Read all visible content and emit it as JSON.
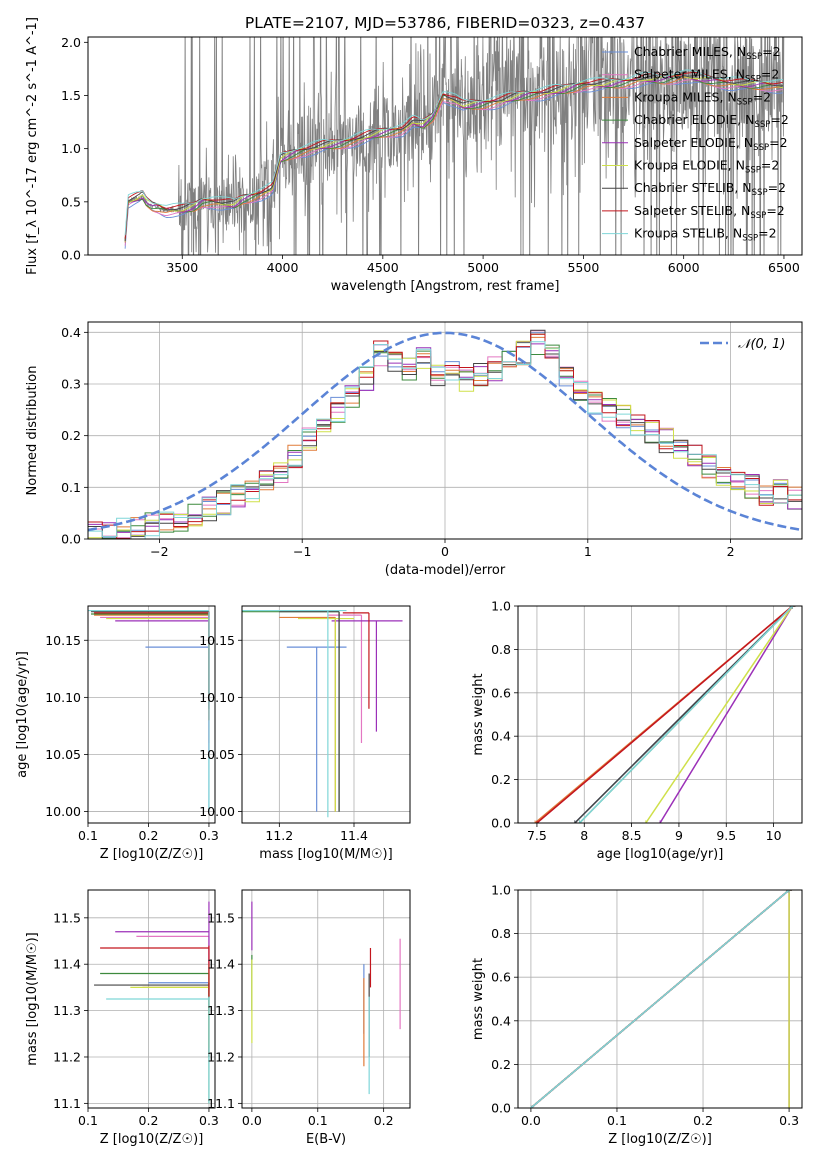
{
  "title": "PLATE=2107, MJD=53786, FIBERID=0323, z=0.437",
  "colors": {
    "Chabrier MILES": "#6a8fd8",
    "Salpeter MILES": "#e377c2",
    "Kroupa MILES": "#e07b39",
    "Chabrier ELODIE": "#3d8a3d",
    "Salpeter ELODIE": "#9b30b8",
    "Kroupa ELODIE": "#cfe04a",
    "Chabrier STELIB": "#444444",
    "Salpeter STELIB": "#c3161d",
    "Kroupa STELIB": "#7fd6d8"
  },
  "chart_data": [
    {
      "type": "line",
      "name": "spectrum",
      "xlabel": "wavelength [Angstrom, rest frame]",
      "ylabel": "Flux [f_λ 10^-17 erg cm^-2 s^-1 A^-1]",
      "xlim": [
        3030,
        6590
      ],
      "ylim": [
        0,
        2.05
      ],
      "xticks": [
        3500,
        4000,
        4500,
        5000,
        5500,
        6000,
        6500
      ],
      "yticks": [
        0.0,
        0.5,
        1.0,
        1.5,
        2.0
      ],
      "grid": false,
      "legend_position": "top-right",
      "legend": [
        "Chabrier MILES, N_SSP=2",
        "Salpeter MILES, N_SSP=2",
        "Kroupa MILES, N_SSP=2",
        "Chabrier ELODIE, N_SSP=2",
        "Salpeter ELODIE, N_SSP=2",
        "Kroupa ELODIE, N_SSP=2",
        "Chabrier STELIB, N_SSP=2",
        "Salpeter STELIB, N_SSP=2",
        "Kroupa STELIB, N_SSP=2"
      ],
      "data_color": "#808080",
      "model_curve": {
        "x": [
          3210,
          3230,
          3260,
          3290,
          3300,
          3320,
          3350,
          3380,
          3420,
          3450,
          3500,
          3560,
          3600,
          3650,
          3700,
          3760,
          3800,
          3850,
          3900,
          3950,
          3970,
          3990,
          4010,
          4050,
          4100,
          4150,
          4200,
          4300,
          4400,
          4500,
          4600,
          4650,
          4700,
          4750,
          4800,
          4860,
          4900,
          5000,
          5100,
          5200,
          5300,
          5400,
          5500,
          5600,
          5700,
          5800,
          5900,
          6000,
          6100,
          6200,
          6300,
          6400,
          6500
        ],
        "y": [
          0.0,
          0.5,
          0.52,
          0.54,
          0.56,
          0.5,
          0.46,
          0.45,
          0.42,
          0.42,
          0.42,
          0.45,
          0.5,
          0.5,
          0.48,
          0.47,
          0.52,
          0.55,
          0.58,
          0.62,
          0.75,
          0.9,
          0.92,
          0.95,
          0.98,
          1.0,
          1.02,
          1.05,
          1.1,
          1.15,
          1.18,
          1.25,
          1.22,
          1.3,
          1.5,
          1.45,
          1.4,
          1.42,
          1.45,
          1.5,
          1.52,
          1.55,
          1.6,
          1.6,
          1.62,
          1.65,
          1.65,
          1.68,
          1.65,
          1.62,
          1.6,
          1.6,
          1.58
        ]
      }
    },
    {
      "type": "line",
      "name": "normed-distribution",
      "xlabel": "(data-model)/error",
      "ylabel": "Normed distribution",
      "xlim": [
        -2.5,
        2.5
      ],
      "ylim": [
        0,
        0.42
      ],
      "xticks": [
        -2,
        -1,
        0,
        1,
        2
      ],
      "yticks": [
        0.0,
        0.1,
        0.2,
        0.3,
        0.4
      ],
      "grid": true,
      "legend_position": "top-right",
      "legend": [
        "𝒩(0, 1)"
      ],
      "gaussian_color": "#5b84d6",
      "histogram_centers": [
        -2.45,
        -2.35,
        -2.25,
        -2.15,
        -2.05,
        -1.95,
        -1.85,
        -1.75,
        -1.65,
        -1.55,
        -1.45,
        -1.35,
        -1.25,
        -1.15,
        -1.05,
        -0.95,
        -0.85,
        -0.75,
        -0.65,
        -0.55,
        -0.45,
        -0.35,
        -0.25,
        -0.15,
        -0.05,
        0.05,
        0.15,
        0.25,
        0.35,
        0.45,
        0.55,
        0.65,
        0.75,
        0.85,
        0.95,
        1.05,
        1.15,
        1.25,
        1.35,
        1.45,
        1.55,
        1.65,
        1.75,
        1.85,
        1.95,
        2.05,
        2.15,
        2.25,
        2.35,
        2.45
      ],
      "histogram_base": [
        0.01,
        0.01,
        0.02,
        0.02,
        0.03,
        0.03,
        0.04,
        0.05,
        0.06,
        0.07,
        0.08,
        0.09,
        0.11,
        0.13,
        0.16,
        0.19,
        0.22,
        0.25,
        0.28,
        0.31,
        0.36,
        0.34,
        0.33,
        0.35,
        0.32,
        0.33,
        0.31,
        0.32,
        0.33,
        0.34,
        0.36,
        0.38,
        0.36,
        0.32,
        0.29,
        0.26,
        0.25,
        0.24,
        0.22,
        0.21,
        0.19,
        0.18,
        0.16,
        0.14,
        0.12,
        0.11,
        0.1,
        0.09,
        0.09,
        0.08
      ]
    },
    {
      "type": "scatter",
      "name": "age-vs-Z",
      "xlabel": "Z [log10(Z/Z☉)]",
      "ylabel": "age  [log10(age/yr)]",
      "xlim": [
        0.1,
        0.31
      ],
      "ylim": [
        9.99,
        10.18
      ],
      "xticks": [
        0.1,
        0.2,
        0.3
      ],
      "yticks": [
        10.0,
        10.05,
        10.1,
        10.15
      ],
      "grid": true,
      "points": [
        {
          "model": "Chabrier MILES",
          "x": 0.3,
          "y": 10.144,
          "xerr": [
            0.195,
            0.3
          ],
          "yerr": [
            10.0,
            10.175
          ]
        },
        {
          "model": "Salpeter MILES",
          "x": 0.3,
          "y": 10.17,
          "xerr": [
            0.12,
            0.3
          ],
          "yerr": [
            10.06,
            10.175
          ]
        },
        {
          "model": "Kroupa MILES",
          "x": 0.3,
          "y": 10.172,
          "xerr": [
            0.11,
            0.3
          ],
          "yerr": [
            10.08,
            10.175
          ]
        },
        {
          "model": "Chabrier ELODIE",
          "x": 0.3,
          "y": 10.173,
          "xerr": [
            0.105,
            0.3
          ],
          "yerr": [
            10.1,
            10.175
          ]
        },
        {
          "model": "Salpeter ELODIE",
          "x": 0.3,
          "y": 10.167,
          "xerr": [
            0.145,
            0.3
          ],
          "yerr": [
            10.05,
            10.175
          ]
        },
        {
          "model": "Kroupa ELODIE",
          "x": 0.3,
          "y": 10.169,
          "xerr": [
            0.13,
            0.3
          ],
          "yerr": [
            10.08,
            10.175
          ]
        },
        {
          "model": "Chabrier STELIB",
          "x": 0.3,
          "y": 10.175,
          "xerr": [
            0.105,
            0.3
          ],
          "yerr": [
            10.09,
            10.175
          ]
        },
        {
          "model": "Salpeter STELIB",
          "x": 0.3,
          "y": 10.174,
          "xerr": [
            0.11,
            0.3
          ],
          "yerr": [
            10.08,
            10.175
          ]
        },
        {
          "model": "Kroupa STELIB",
          "x": 0.3,
          "y": 10.176,
          "xerr": [
            0.1,
            0.3
          ],
          "yerr": [
            10.0,
            10.175
          ]
        }
      ]
    },
    {
      "type": "scatter",
      "name": "age-vs-mass",
      "xlabel": "mass [log10(M/M☉)]",
      "ylabel": "",
      "xlim": [
        11.1,
        11.55
      ],
      "ylim": [
        9.99,
        10.18
      ],
      "xticks": [
        11.2,
        11.4
      ],
      "yticks": [
        10.0,
        10.05,
        10.1,
        10.15
      ],
      "grid": true,
      "points": [
        {
          "model": "Chabrier MILES",
          "x": 11.3,
          "y": 10.144,
          "xerr": [
            11.22,
            11.38
          ],
          "yerr": [
            10.0,
            10.144
          ]
        },
        {
          "model": "Salpeter MILES",
          "x": 11.42,
          "y": 10.172,
          "xerr": [
            11.33,
            11.42
          ],
          "yerr": [
            10.06,
            10.172
          ]
        },
        {
          "model": "Kroupa MILES",
          "x": 11.35,
          "y": 10.17,
          "xerr": [
            11.2,
            11.35
          ],
          "yerr": [
            10.0,
            10.17
          ]
        },
        {
          "model": "Chabrier ELODIE",
          "x": 11.36,
          "y": 10.175,
          "xerr": [
            11.1,
            11.36
          ],
          "yerr": [
            10.0,
            10.175
          ]
        },
        {
          "model": "Salpeter ELODIE",
          "x": 11.46,
          "y": 10.167,
          "xerr": [
            11.34,
            11.53
          ],
          "yerr": [
            10.07,
            10.167
          ]
        },
        {
          "model": "Kroupa ELODIE",
          "x": 11.35,
          "y": 10.169,
          "xerr": [
            11.25,
            11.4
          ],
          "yerr": [
            10.0,
            10.169
          ]
        },
        {
          "model": "Chabrier STELIB",
          "x": 11.36,
          "y": 10.175,
          "xerr": [
            11.2,
            11.36
          ],
          "yerr": [
            10.0,
            10.175
          ]
        },
        {
          "model": "Salpeter STELIB",
          "x": 11.44,
          "y": 10.174,
          "xerr": [
            11.37,
            11.44
          ],
          "yerr": [
            10.09,
            10.174
          ]
        },
        {
          "model": "Kroupa STELIB",
          "x": 11.33,
          "y": 10.176,
          "xerr": [
            11.1,
            11.38
          ],
          "yerr": [
            9.995,
            10.176
          ]
        }
      ]
    },
    {
      "type": "line",
      "name": "mass-weight-vs-age",
      "xlabel": "age  [log10(age/yr)]",
      "ylabel": "mass weight",
      "xlim": [
        7.3,
        10.3
      ],
      "ylim": [
        0,
        1
      ],
      "xticks": [
        7.5,
        8.0,
        8.5,
        9.0,
        9.5,
        10.0
      ],
      "yticks": [
        0.0,
        0.2,
        0.4,
        0.6,
        0.8,
        1.0
      ],
      "grid": true,
      "series": [
        {
          "model": "Chabrier MILES",
          "x": [
            7.9,
            10.2
          ],
          "y": [
            0,
            1
          ]
        },
        {
          "model": "Salpeter MILES",
          "x": [
            7.5,
            10.2
          ],
          "y": [
            0,
            1
          ]
        },
        {
          "model": "Kroupa MILES",
          "x": [
            7.48,
            10.2
          ],
          "y": [
            0,
            1
          ]
        },
        {
          "model": "Chabrier ELODIE",
          "x": [
            7.95,
            10.2
          ],
          "y": [
            0,
            1
          ]
        },
        {
          "model": "Salpeter ELODIE",
          "x": [
            8.8,
            10.2
          ],
          "y": [
            0,
            1
          ]
        },
        {
          "model": "Kroupa ELODIE",
          "x": [
            8.65,
            10.2
          ],
          "y": [
            0,
            1
          ]
        },
        {
          "model": "Chabrier STELIB",
          "x": [
            7.9,
            10.2
          ],
          "y": [
            0,
            1
          ]
        },
        {
          "model": "Salpeter STELIB",
          "x": [
            7.5,
            10.2
          ],
          "y": [
            0,
            1
          ]
        },
        {
          "model": "Kroupa STELIB",
          "x": [
            7.95,
            10.2
          ],
          "y": [
            0,
            1
          ]
        }
      ]
    },
    {
      "type": "scatter",
      "name": "mass-vs-Z",
      "xlabel": "Z [log10(Z/Z☉)]",
      "ylabel": "mass [log10(M/M☉)]",
      "xlim": [
        0.1,
        0.31
      ],
      "ylim": [
        11.09,
        11.56
      ],
      "xticks": [
        0.1,
        0.2,
        0.3
      ],
      "yticks": [
        11.1,
        11.2,
        11.3,
        11.4,
        11.5
      ],
      "grid": true,
      "points": [
        {
          "model": "Chabrier MILES",
          "x": 0.3,
          "y": 11.36,
          "xerr": [
            0.2,
            0.3
          ],
          "yerr": [
            11.3,
            11.4
          ]
        },
        {
          "model": "Salpeter MILES",
          "x": 0.3,
          "y": 11.46,
          "xerr": [
            0.18,
            0.3
          ],
          "yerr": [
            11.35,
            11.46
          ]
        },
        {
          "model": "Kroupa MILES",
          "x": 0.3,
          "y": 11.35,
          "xerr": [
            0.19,
            0.3
          ],
          "yerr": [
            11.2,
            11.36
          ]
        },
        {
          "model": "Chabrier ELODIE",
          "x": 0.3,
          "y": 11.38,
          "xerr": [
            0.12,
            0.3
          ],
          "yerr": [
            11.1,
            11.38
          ]
        },
        {
          "model": "Salpeter ELODIE",
          "x": 0.3,
          "y": 11.47,
          "xerr": [
            0.145,
            0.3
          ],
          "yerr": [
            11.4,
            11.535
          ]
        },
        {
          "model": "Kroupa ELODIE",
          "x": 0.3,
          "y": 11.35,
          "xerr": [
            0.17,
            0.3
          ],
          "yerr": [
            11.22,
            11.4
          ]
        },
        {
          "model": "Chabrier STELIB",
          "x": 0.3,
          "y": 11.355,
          "xerr": [
            0.11,
            0.3
          ],
          "yerr": [
            11.2,
            11.36
          ]
        },
        {
          "model": "Salpeter STELIB",
          "x": 0.3,
          "y": 11.435,
          "xerr": [
            0.12,
            0.3
          ],
          "yerr": [
            11.33,
            11.44
          ]
        },
        {
          "model": "Kroupa STELIB",
          "x": 0.3,
          "y": 11.325,
          "xerr": [
            0.13,
            0.3
          ],
          "yerr": [
            11.1,
            11.33
          ]
        }
      ]
    },
    {
      "type": "scatter",
      "name": "mass-vs-EBV",
      "xlabel": "E(B-V)",
      "ylabel": "",
      "xlim": [
        -0.015,
        0.24
      ],
      "ylim": [
        11.09,
        11.56
      ],
      "xticks": [
        0.0,
        0.1,
        0.2
      ],
      "yticks": [
        11.1,
        11.2,
        11.3,
        11.4,
        11.5
      ],
      "grid": true,
      "points": [
        {
          "model": "Chabrier MILES",
          "x": 0.17,
          "y": 11.36,
          "yerr": [
            11.25,
            11.4
          ]
        },
        {
          "model": "Salpeter MILES",
          "x": 0.225,
          "y": 11.36,
          "yerr": [
            11.26,
            11.455
          ]
        },
        {
          "model": "Kroupa MILES",
          "x": 0.17,
          "y": 11.3,
          "yerr": [
            11.18,
            11.37
          ]
        },
        {
          "model": "Chabrier ELODIE",
          "x": 0.0,
          "y": 11.38,
          "yerr": [
            11.3,
            11.42
          ]
        },
        {
          "model": "Salpeter ELODIE",
          "x": 0.0,
          "y": 11.47,
          "yerr": [
            11.43,
            11.535
          ]
        },
        {
          "model": "Kroupa ELODIE",
          "x": 0.0,
          "y": 11.3,
          "yerr": [
            11.23,
            11.41
          ]
        },
        {
          "model": "Chabrier STELIB",
          "x": 0.178,
          "y": 11.35,
          "yerr": [
            11.2,
            11.38
          ]
        },
        {
          "model": "Salpeter STELIB",
          "x": 0.18,
          "y": 11.4,
          "yerr": [
            11.35,
            11.435
          ]
        },
        {
          "model": "Kroupa STELIB",
          "x": 0.178,
          "y": 11.2,
          "yerr": [
            11.12,
            11.33
          ]
        }
      ]
    },
    {
      "type": "line",
      "name": "mass-weight-vs-Z",
      "xlabel": "Z [log10(Z/Z☉)]",
      "ylabel": "mass weight",
      "xlim": [
        -0.015,
        0.315
      ],
      "ylim": [
        0,
        1
      ],
      "xticks": [
        0.0,
        0.1,
        0.2,
        0.3
      ],
      "yticks": [
        0.0,
        0.2,
        0.4,
        0.6,
        0.8,
        1.0
      ],
      "grid": true,
      "series": [
        {
          "model": "Chabrier MILES",
          "x": [
            0.0,
            0.3
          ],
          "y": [
            0,
            1
          ]
        },
        {
          "model": "Salpeter MILES",
          "x": [
            0.0,
            0.3
          ],
          "y": [
            0,
            1
          ]
        },
        {
          "model": "Kroupa MILES",
          "x": [
            0.0,
            0.3
          ],
          "y": [
            0,
            1
          ]
        },
        {
          "model": "Chabrier ELODIE",
          "x": [
            0.0,
            0.3
          ],
          "y": [
            0,
            1
          ]
        },
        {
          "model": "Salpeter ELODIE",
          "x": [
            0.3,
            0.3
          ],
          "y": [
            0,
            1
          ]
        },
        {
          "model": "Kroupa ELODIE",
          "x": [
            0.3,
            0.3
          ],
          "y": [
            0,
            1
          ]
        },
        {
          "model": "Chabrier STELIB",
          "x": [
            0.0,
            0.3
          ],
          "y": [
            0,
            1
          ]
        },
        {
          "model": "Salpeter STELIB",
          "x": [
            0.0,
            0.3
          ],
          "y": [
            0,
            1
          ]
        },
        {
          "model": "Kroupa STELIB",
          "x": [
            0.0,
            0.3
          ],
          "y": [
            0,
            1
          ]
        }
      ]
    }
  ]
}
